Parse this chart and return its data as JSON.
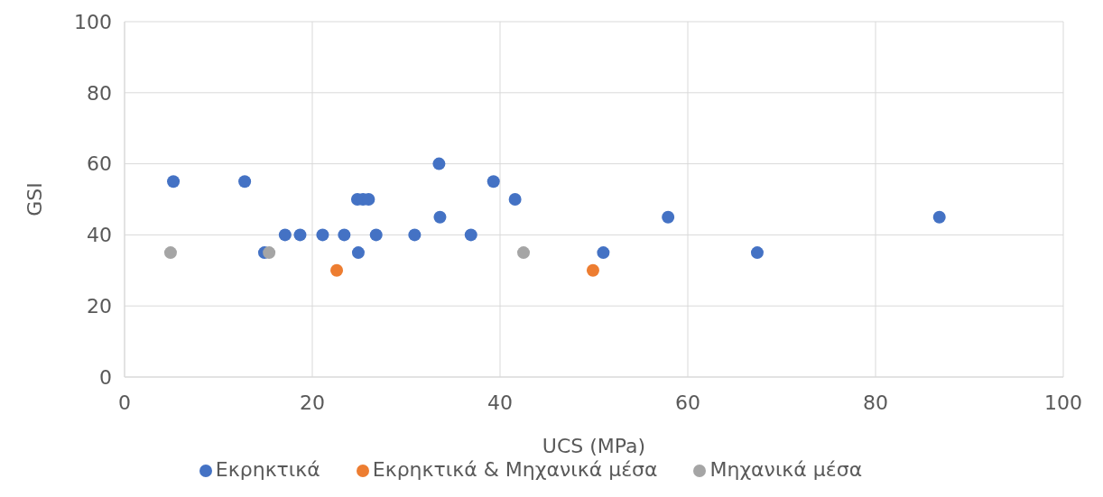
{
  "chart_data": {
    "type": "scatter",
    "xlabel": "UCS (MPa)",
    "ylabel": "GSI",
    "xlim": [
      0,
      100
    ],
    "xticks": [
      0,
      20,
      40,
      60,
      80,
      100
    ],
    "ylim": [
      0,
      100
    ],
    "yticks": [
      0,
      20,
      40,
      60,
      80,
      100
    ],
    "grid": true,
    "legend": "bottom",
    "marker": "circle",
    "series": [
      {
        "name": "Εκρηκτικά",
        "color": "#4472c4",
        "x": [
          5.2,
          12.8,
          14.9,
          17.1,
          18.7,
          21.1,
          23.4,
          24.8,
          25.4,
          26.0,
          24.9,
          26.8,
          30.9,
          33.5,
          33.6,
          36.9,
          39.3,
          41.6,
          51.0,
          57.9,
          67.4,
          86.8
        ],
        "values": [
          55,
          55,
          35,
          40,
          40,
          40,
          40,
          50,
          50,
          50,
          35,
          40,
          40,
          60,
          45,
          40,
          55,
          50,
          35,
          45,
          35,
          45
        ]
      },
      {
        "name": "Εκρηκτικά & Μηχανικά μέσα",
        "color": "#ed7d31",
        "x": [
          22.6,
          49.9
        ],
        "values": [
          30,
          30
        ]
      },
      {
        "name": "Μηχανικά μέσα",
        "color": "#a5a5a5",
        "x": [
          4.9,
          15.4,
          42.5
        ],
        "values": [
          35,
          35,
          35
        ]
      }
    ]
  }
}
